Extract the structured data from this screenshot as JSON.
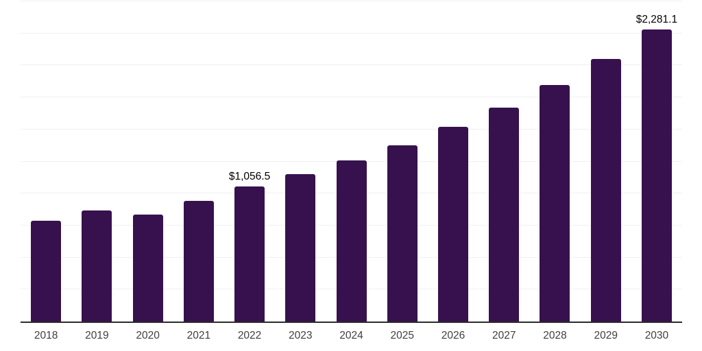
{
  "chart_data": {
    "type": "bar",
    "title": "",
    "xlabel": "",
    "ylabel": "",
    "categories": [
      "2018",
      "2019",
      "2020",
      "2021",
      "2022",
      "2023",
      "2024",
      "2025",
      "2026",
      "2027",
      "2028",
      "2029",
      "2030"
    ],
    "values": [
      785,
      865,
      835,
      940,
      1056.5,
      1150,
      1260,
      1375,
      1520,
      1670,
      1845,
      2050,
      2281.1
    ],
    "value_labels": [
      "",
      "",
      "",
      "",
      "$1,056.5",
      "",
      "",
      "",
      "",
      "",
      "",
      "",
      "$2,281.1"
    ],
    "ylim": [
      0,
      2500
    ],
    "grid_step": 250,
    "grid": true,
    "legend": false,
    "y_tick_labels_shown": false
  },
  "colors": {
    "background": "#ffffff",
    "bar": "#37114e",
    "grid": "#f0f0f0",
    "axis": "#2b2b2b",
    "value_label": "#000000",
    "year_label": "#3f3f3f"
  }
}
